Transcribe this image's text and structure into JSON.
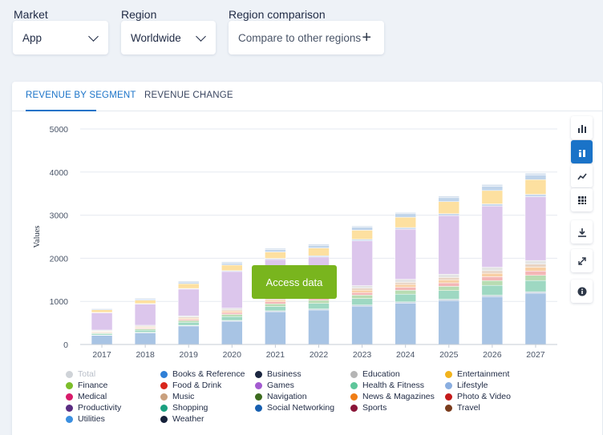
{
  "filters": {
    "market_label": "Market",
    "market_value": "App",
    "region_label": "Region",
    "region_value": "Worldwide",
    "comparison_label": "Region comparison",
    "comparison_value": "Compare to other regions"
  },
  "tabs": [
    {
      "label": "REVENUE BY SEGMENT",
      "active": true
    },
    {
      "label": "REVENUE CHANGE",
      "active": false
    }
  ],
  "toolbar": {
    "icons": [
      "bar-chart-icon",
      "stacked-bar-icon",
      "line-chart-icon",
      "table-icon",
      "download-icon",
      "expand-icon",
      "info-icon"
    ],
    "active": "stacked-bar-icon"
  },
  "access_button": "Access data",
  "colors": {
    "accent": "#1a73c8",
    "access_button": "#79b51e"
  },
  "chart_data": {
    "type": "bar",
    "stacked": true,
    "ylabel": "Values",
    "xlabel": "",
    "ylim": [
      0,
      5000
    ],
    "yticks": [
      0,
      1000,
      2000,
      3000,
      4000,
      5000
    ],
    "grid": true,
    "categories": [
      "2017",
      "2018",
      "2019",
      "2020",
      "2021",
      "2022",
      "2023",
      "2024",
      "2025",
      "2026",
      "2027"
    ],
    "series": [
      {
        "name": "Utilities",
        "color": "#a8c4e4",
        "values": [
          210,
          270,
          430,
          540,
          760,
          800,
          890,
          960,
          1020,
          1110,
          1190
        ]
      },
      {
        "name": "Weather",
        "color": "#c4d0dc",
        "values": [
          10,
          12,
          15,
          18,
          22,
          24,
          26,
          28,
          30,
          32,
          34
        ]
      },
      {
        "name": "Health & Fitness",
        "color": "#9ed8c2",
        "values": [
          30,
          50,
          70,
          90,
          100,
          130,
          150,
          180,
          200,
          230,
          260
        ]
      },
      {
        "name": "Shopping",
        "color": "#b8dcb2",
        "values": [
          20,
          30,
          40,
          50,
          60,
          70,
          80,
          90,
          100,
          110,
          120
        ]
      },
      {
        "name": "Photo & Video",
        "color": "#f4b6b6",
        "values": [
          15,
          20,
          30,
          40,
          50,
          55,
          60,
          70,
          80,
          90,
          100
        ]
      },
      {
        "name": "News & Magazines",
        "color": "#f8cfa4",
        "values": [
          15,
          20,
          25,
          35,
          40,
          50,
          55,
          65,
          70,
          80,
          90
        ]
      },
      {
        "name": "Music",
        "color": "#e8d4c4",
        "values": [
          15,
          20,
          25,
          30,
          35,
          40,
          45,
          50,
          55,
          60,
          70
        ]
      },
      {
        "name": "Education",
        "color": "#e4e4e4",
        "values": [
          20,
          25,
          30,
          40,
          45,
          50,
          60,
          70,
          75,
          80,
          85
        ]
      },
      {
        "name": "Games",
        "color": "#dcc6ec",
        "values": [
          400,
          490,
          620,
          850,
          860,
          810,
          1040,
          1160,
          1360,
          1420,
          1480
        ]
      },
      {
        "name": "Lifestyle",
        "color": "#c8d8ee",
        "values": [
          10,
          12,
          15,
          20,
          25,
          30,
          35,
          40,
          45,
          50,
          55
        ]
      },
      {
        "name": "Entertainment",
        "color": "#fde0a0",
        "values": [
          60,
          80,
          110,
          130,
          150,
          180,
          210,
          240,
          280,
          310,
          340
        ]
      },
      {
        "name": "Social Networking",
        "color": "#c0d4ea",
        "values": [
          20,
          25,
          35,
          45,
          55,
          60,
          70,
          80,
          90,
          100,
          110
        ]
      },
      {
        "name": "Books & Reference",
        "color": "#d4e0ee",
        "values": [
          15,
          20,
          25,
          30,
          30,
          30,
          30,
          30,
          40,
          40,
          40
        ]
      }
    ]
  },
  "legend": [
    {
      "label": "Total",
      "color": "#cfd3d8",
      "muted": true
    },
    {
      "label": "Books & Reference",
      "color": "#2f7fd6"
    },
    {
      "label": "Business",
      "color": "#1b2640"
    },
    {
      "label": "Education",
      "color": "#b5b5b5"
    },
    {
      "label": "Entertainment",
      "color": "#f2b31c"
    },
    {
      "label": "Finance",
      "color": "#7cbd2a"
    },
    {
      "label": "Food & Drink",
      "color": "#d9261c"
    },
    {
      "label": "Games",
      "color": "#a35bd0"
    },
    {
      "label": "Health & Fitness",
      "color": "#5ec69a"
    },
    {
      "label": "Lifestyle",
      "color": "#8aaee0"
    },
    {
      "label": "Medical",
      "color": "#d81b6a"
    },
    {
      "label": "Music",
      "color": "#c9a07e"
    },
    {
      "label": "Navigation",
      "color": "#3d6b1f"
    },
    {
      "label": "News & Magazines",
      "color": "#f07d14"
    },
    {
      "label": "Photo & Video",
      "color": "#c41a1a"
    },
    {
      "label": "Productivity",
      "color": "#5a2d82"
    },
    {
      "label": "Shopping",
      "color": "#1aa080"
    },
    {
      "label": "Social Networking",
      "color": "#175fb0"
    },
    {
      "label": "Sports",
      "color": "#8a1538"
    },
    {
      "label": "Travel",
      "color": "#7a3b1c"
    },
    {
      "label": "Utilities",
      "color": "#3b8fe0"
    },
    {
      "label": "Weather",
      "color": "#16213a"
    }
  ]
}
